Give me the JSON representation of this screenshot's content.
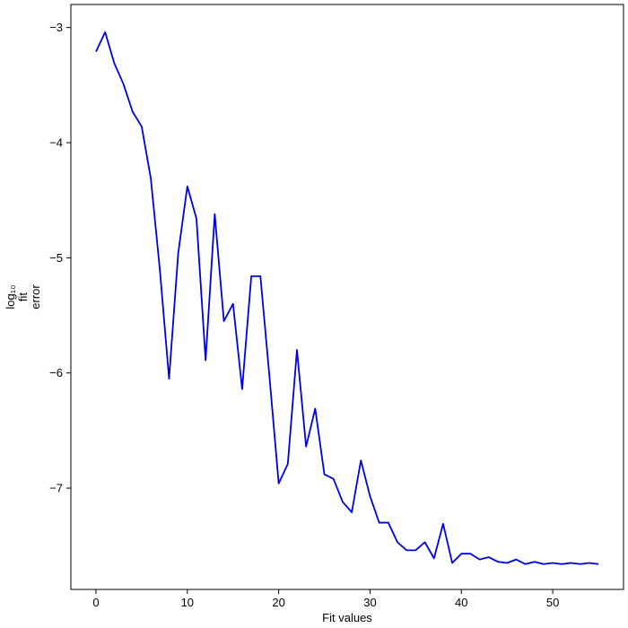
{
  "chart_data": {
    "type": "line",
    "xlabel": "Fit values",
    "ylabel_lines": [
      "log₁₀",
      "fit",
      "error"
    ],
    "xlim": [
      -2.75,
      57.75
    ],
    "ylim": [
      -7.88,
      -2.8
    ],
    "x_ticks": [
      0,
      10,
      20,
      30,
      40,
      50
    ],
    "x_tick_labels": [
      "0",
      "10",
      "20",
      "30",
      "40",
      "50"
    ],
    "y_ticks": [
      -7,
      -6,
      -5,
      -4,
      -3
    ],
    "y_tick_labels": [
      "−7",
      "−6",
      "−5",
      "−4",
      "−3"
    ],
    "grid": false,
    "colors": {
      "line": "#0000dd",
      "axes": "#000000"
    },
    "series": [
      {
        "x": [
          0,
          1,
          2,
          3,
          4,
          5,
          6,
          7,
          8,
          9,
          10,
          11,
          12,
          13,
          14,
          15,
          16,
          17,
          18,
          19,
          20,
          21,
          22,
          23,
          24,
          25,
          26,
          27,
          28,
          29,
          30,
          31,
          32,
          33,
          34,
          35,
          36,
          37,
          38,
          39,
          40,
          41,
          42,
          43,
          44,
          45,
          46,
          47,
          48,
          49,
          50,
          51,
          52,
          53,
          54,
          55
        ],
        "y": [
          -3.21,
          -3.04,
          -3.31,
          -3.49,
          -3.73,
          -3.86,
          -4.31,
          -5.11,
          -6.05,
          -4.96,
          -4.38,
          -4.66,
          -5.89,
          -4.62,
          -5.55,
          -5.4,
          -6.14,
          -5.16,
          -5.16,
          -6.04,
          -6.96,
          -6.79,
          -5.8,
          -6.64,
          -6.31,
          -6.88,
          -6.92,
          -7.12,
          -7.21,
          -6.76,
          -7.07,
          -7.3,
          -7.3,
          -7.47,
          -7.54,
          -7.54,
          -7.47,
          -7.61,
          -7.31,
          -7.65,
          -7.57,
          -7.57,
          -7.62,
          -7.6,
          -7.64,
          -7.65,
          -7.62,
          -7.66,
          -7.64,
          -7.66,
          -7.65,
          -7.66,
          -7.65,
          -7.66,
          -7.65,
          -7.66
        ]
      }
    ]
  }
}
